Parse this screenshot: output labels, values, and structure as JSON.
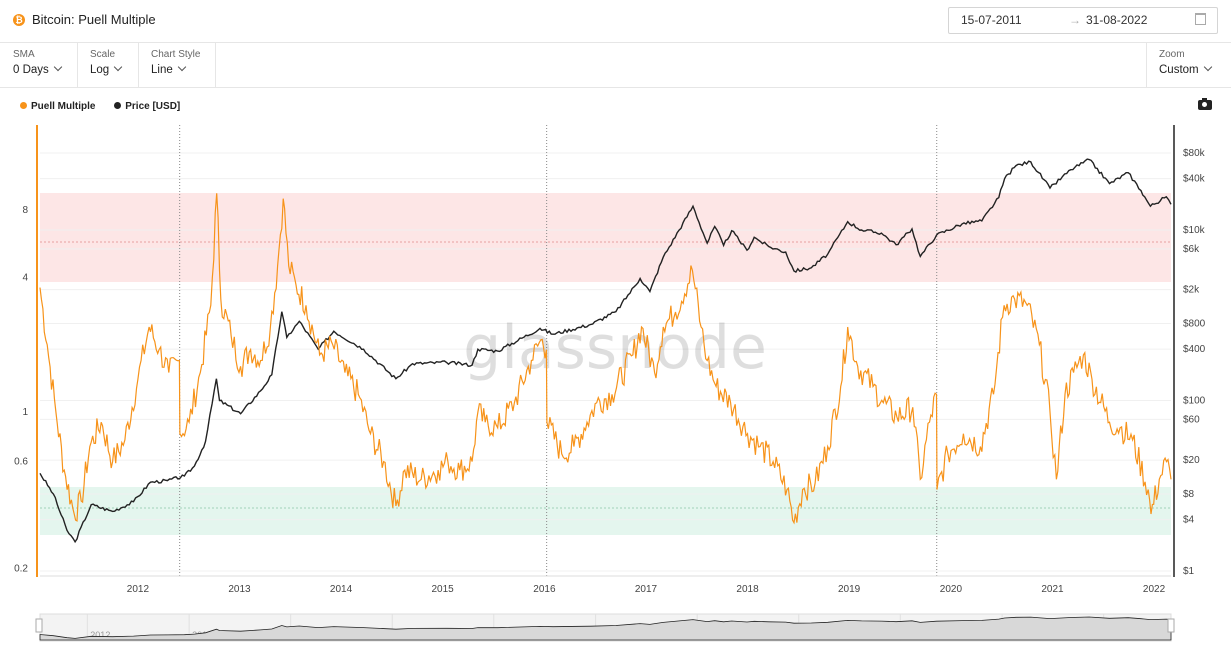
{
  "header": {
    "coin_glyph": "₿",
    "title": "Bitcoin: Puell Multiple",
    "date_from": "15-07-2011",
    "date_arrow": "→",
    "date_to": "31-08-2022"
  },
  "controls": [
    {
      "label": "SMA",
      "value": "0 Days"
    },
    {
      "label": "Scale",
      "value": "Log"
    },
    {
      "label": "Chart Style",
      "value": "Line"
    }
  ],
  "zoom": {
    "label": "Zoom",
    "value": "Custom"
  },
  "watermark": "glassnode",
  "colors": {
    "puell": "#f7931a",
    "price": "#222222",
    "red_band": "#fde6e6",
    "green_band": "#e6f7ef"
  },
  "chart_data": {
    "type": "line",
    "x_range": [
      "2011-07-15",
      "2022-08-31"
    ],
    "x_ticks": [
      "2012",
      "2013",
      "2014",
      "2015",
      "2016",
      "2017",
      "2018",
      "2019",
      "2020",
      "2021",
      "2022"
    ],
    "halving_lines": [
      "2012-11-28",
      "2016-07-09",
      "2020-05-11"
    ],
    "left_axis": {
      "scale": "log",
      "ticks": [
        "0.2",
        "0.6",
        "1",
        "4",
        "8"
      ],
      "tick_values": [
        0.2,
        0.6,
        1,
        4,
        8
      ]
    },
    "right_axis": {
      "scale": "log",
      "ticks": [
        "$1",
        "$4",
        "$8",
        "$20",
        "$60",
        "$100",
        "$400",
        "$800",
        "$2k",
        "$6k",
        "$10k",
        "$40k",
        "$80k"
      ],
      "tick_values": [
        1,
        4,
        8,
        20,
        60,
        100,
        400,
        800,
        2000,
        6000,
        10000,
        40000,
        80000
      ]
    },
    "bands": [
      {
        "name": "red",
        "from": 3.8,
        "to": 10.5,
        "midline": 6.4
      },
      {
        "name": "green",
        "from": 0.3,
        "to": 0.5,
        "midline": 0.4
      }
    ],
    "series": [
      {
        "name": "Puell Multiple",
        "axis": "left",
        "points": [
          [
            "2011-07-15",
            3.6
          ],
          [
            "2011-08-10",
            2.0
          ],
          [
            "2011-09-10",
            1.0
          ],
          [
            "2011-10-10",
            0.55
          ],
          [
            "2011-11-15",
            0.35
          ],
          [
            "2011-12-10",
            0.4
          ],
          [
            "2012-01-10",
            0.7
          ],
          [
            "2012-02-20",
            0.9
          ],
          [
            "2012-04-01",
            0.6
          ],
          [
            "2012-05-15",
            0.75
          ],
          [
            "2012-07-01",
            1.4
          ],
          [
            "2012-08-10",
            2.4
          ],
          [
            "2012-09-15",
            1.9
          ],
          [
            "2012-10-20",
            1.5
          ],
          [
            "2012-11-27",
            1.7
          ],
          [
            "2012-11-29",
            0.8
          ],
          [
            "2013-01-01",
            0.9
          ],
          [
            "2013-02-10",
            1.5
          ],
          [
            "2013-03-20",
            3.0
          ],
          [
            "2013-04-10",
            9.5
          ],
          [
            "2013-04-25",
            3.2
          ],
          [
            "2013-06-01",
            2.2
          ],
          [
            "2013-07-05",
            1.6
          ],
          [
            "2013-08-10",
            1.9
          ],
          [
            "2013-09-15",
            1.7
          ],
          [
            "2013-10-20",
            2.4
          ],
          [
            "2013-11-15",
            4.5
          ],
          [
            "2013-12-05",
            9.0
          ],
          [
            "2013-12-25",
            4.5
          ],
          [
            "2014-01-20",
            3.7
          ],
          [
            "2014-02-25",
            3.0
          ],
          [
            "2014-04-15",
            1.8
          ],
          [
            "2014-06-01",
            2.0
          ],
          [
            "2014-07-15",
            1.5
          ],
          [
            "2014-09-01",
            1.2
          ],
          [
            "2014-10-15",
            0.8
          ],
          [
            "2014-12-01",
            0.6
          ],
          [
            "2015-01-14",
            0.38
          ],
          [
            "2015-02-15",
            0.55
          ],
          [
            "2015-04-15",
            0.5
          ],
          [
            "2015-06-15",
            0.55
          ],
          [
            "2015-07-20",
            0.6
          ],
          [
            "2015-09-01",
            0.55
          ],
          [
            "2015-10-15",
            0.6
          ],
          [
            "2015-11-05",
            1.0
          ],
          [
            "2015-12-01",
            0.9
          ],
          [
            "2016-01-15",
            0.85
          ],
          [
            "2016-03-15",
            1.1
          ],
          [
            "2016-05-15",
            1.7
          ],
          [
            "2016-06-18",
            2.1
          ],
          [
            "2016-07-08",
            1.9
          ],
          [
            "2016-07-10",
            0.9
          ],
          [
            "2016-09-01",
            0.65
          ],
          [
            "2016-10-15",
            0.7
          ],
          [
            "2016-12-01",
            0.9
          ],
          [
            "2017-01-05",
            1.1
          ],
          [
            "2017-03-01",
            1.2
          ],
          [
            "2017-05-15",
            1.8
          ],
          [
            "2017-06-15",
            2.4
          ],
          [
            "2017-08-01",
            1.5
          ],
          [
            "2017-09-01",
            2.4
          ],
          [
            "2017-10-15",
            2.8
          ],
          [
            "2017-12-15",
            4.3
          ],
          [
            "2018-01-15",
            2.4
          ],
          [
            "2018-02-06",
            1.7
          ],
          [
            "2018-03-10",
            1.3
          ],
          [
            "2018-05-01",
            1.1
          ],
          [
            "2018-07-01",
            0.8
          ],
          [
            "2018-08-15",
            0.7
          ],
          [
            "2018-10-01",
            0.6
          ],
          [
            "2018-11-20",
            0.45
          ],
          [
            "2018-12-15",
            0.32
          ],
          [
            "2019-01-15",
            0.45
          ],
          [
            "2019-03-01",
            0.48
          ],
          [
            "2019-04-15",
            0.7
          ],
          [
            "2019-06-01",
            1.3
          ],
          [
            "2019-06-26",
            2.4
          ],
          [
            "2019-08-01",
            1.6
          ],
          [
            "2019-09-25",
            1.3
          ],
          [
            "2019-11-01",
            1.1
          ],
          [
            "2019-12-20",
            0.95
          ],
          [
            "2020-02-15",
            1.05
          ],
          [
            "2020-03-13",
            0.5
          ],
          [
            "2020-04-15",
            0.9
          ],
          [
            "2020-05-10",
            1.2
          ],
          [
            "2020-05-12",
            0.45
          ],
          [
            "2020-06-20",
            0.65
          ],
          [
            "2020-08-15",
            0.8
          ],
          [
            "2020-10-15",
            0.7
          ],
          [
            "2020-12-01",
            1.2
          ],
          [
            "2021-01-08",
            3.0
          ],
          [
            "2021-02-15",
            3.2
          ],
          [
            "2021-04-01",
            3.0
          ],
          [
            "2021-05-15",
            2.0
          ],
          [
            "2021-06-22",
            1.0
          ],
          [
            "2021-07-15",
            0.5
          ],
          [
            "2021-08-15",
            1.2
          ],
          [
            "2021-09-15",
            1.5
          ],
          [
            "2021-10-20",
            1.8
          ],
          [
            "2021-11-20",
            1.4
          ],
          [
            "2022-01-22",
            0.9
          ],
          [
            "2022-03-01",
            0.85
          ],
          [
            "2022-04-15",
            0.75
          ],
          [
            "2022-06-10",
            0.45
          ],
          [
            "2022-06-20",
            0.35
          ],
          [
            "2022-07-20",
            0.5
          ],
          [
            "2022-08-15",
            0.6
          ],
          [
            "2022-08-31",
            0.5
          ]
        ]
      },
      {
        "name": "Price [USD]",
        "axis": "right",
        "points": [
          [
            "2011-07-15",
            14
          ],
          [
            "2011-09-01",
            8
          ],
          [
            "2011-10-20",
            3
          ],
          [
            "2011-11-18",
            2.2
          ],
          [
            "2012-01-15",
            6
          ],
          [
            "2012-04-01",
            5
          ],
          [
            "2012-06-15",
            6.5
          ],
          [
            "2012-08-15",
            11
          ],
          [
            "2012-10-15",
            11.5
          ],
          [
            "2012-12-15",
            13
          ],
          [
            "2013-01-20",
            17
          ],
          [
            "2013-03-01",
            33
          ],
          [
            "2013-04-09",
            180
          ],
          [
            "2013-04-20",
            100
          ],
          [
            "2013-07-05",
            70
          ],
          [
            "2013-09-15",
            130
          ],
          [
            "2013-10-25",
            200
          ],
          [
            "2013-11-30",
            1100
          ],
          [
            "2013-12-18",
            550
          ],
          [
            "2014-02-01",
            850
          ],
          [
            "2014-04-10",
            400
          ],
          [
            "2014-06-05",
            650
          ],
          [
            "2014-09-20",
            400
          ],
          [
            "2015-01-14",
            180
          ],
          [
            "2015-03-15",
            270
          ],
          [
            "2015-07-15",
            280
          ],
          [
            "2015-10-15",
            260
          ],
          [
            "2015-11-05",
            400
          ],
          [
            "2016-01-15",
            380
          ],
          [
            "2016-06-15",
            700
          ],
          [
            "2016-08-01",
            600
          ],
          [
            "2016-12-15",
            780
          ],
          [
            "2017-03-15",
            1100
          ],
          [
            "2017-06-10",
            2700
          ],
          [
            "2017-07-15",
            1900
          ],
          [
            "2017-09-01",
            4800
          ],
          [
            "2017-12-17",
            19000
          ],
          [
            "2018-02-06",
            7000
          ],
          [
            "2018-03-05",
            11000
          ],
          [
            "2018-04-06",
            6600
          ],
          [
            "2018-05-05",
            9800
          ],
          [
            "2018-06-29",
            5800
          ],
          [
            "2018-07-25",
            8200
          ],
          [
            "2018-09-15",
            6400
          ],
          [
            "2018-11-15",
            5500
          ],
          [
            "2018-12-15",
            3300
          ],
          [
            "2019-02-15",
            3600
          ],
          [
            "2019-04-15",
            5200
          ],
          [
            "2019-06-26",
            12500
          ],
          [
            "2019-08-15",
            10000
          ],
          [
            "2019-10-25",
            9200
          ],
          [
            "2019-12-17",
            6700
          ],
          [
            "2020-02-12",
            10300
          ],
          [
            "2020-03-13",
            4900
          ],
          [
            "2020-05-10",
            8700
          ],
          [
            "2020-08-10",
            11800
          ],
          [
            "2020-10-20",
            12800
          ],
          [
            "2020-12-20",
            24000
          ],
          [
            "2021-01-10",
            40000
          ],
          [
            "2021-02-20",
            57000
          ],
          [
            "2021-04-14",
            63000
          ],
          [
            "2021-06-22",
            31000
          ],
          [
            "2021-09-05",
            51000
          ],
          [
            "2021-11-10",
            67000
          ],
          [
            "2022-01-22",
            35000
          ],
          [
            "2022-03-30",
            47000
          ],
          [
            "2022-05-15",
            29000
          ],
          [
            "2022-06-18",
            19000
          ],
          [
            "2022-08-14",
            24500
          ],
          [
            "2022-08-31",
            20000
          ]
        ]
      }
    ]
  }
}
